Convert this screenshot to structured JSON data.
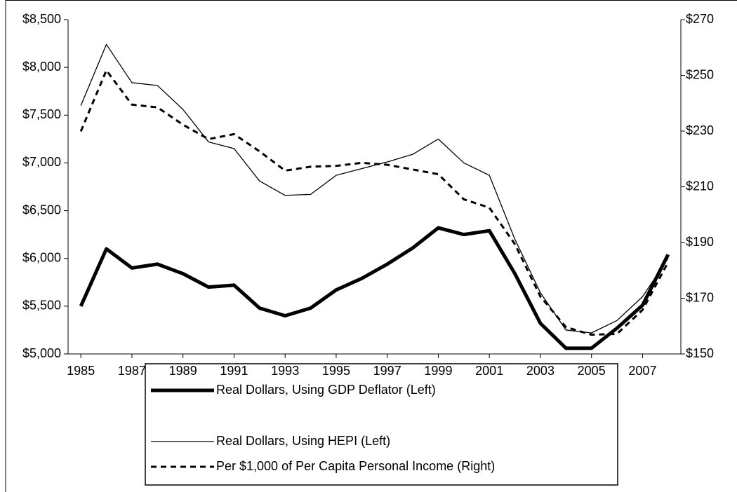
{
  "chart_data": {
    "type": "line",
    "x": [
      1985,
      1986,
      1987,
      1988,
      1989,
      1990,
      1991,
      1992,
      1993,
      1994,
      1995,
      1996,
      1997,
      1998,
      1999,
      2000,
      2001,
      2002,
      2003,
      2004,
      2005,
      2006,
      2007,
      2008
    ],
    "xlim": [
      1984.5,
      2008.5
    ],
    "xticks": [
      1985,
      1987,
      1989,
      1991,
      1993,
      1995,
      1997,
      1999,
      2001,
      2003,
      2005,
      2007
    ],
    "ylim": [
      5000,
      8500
    ],
    "yticks": [
      {
        "value": 5000,
        "label": "$5,000"
      },
      {
        "value": 5500,
        "label": "$5,500"
      },
      {
        "value": 6000,
        "label": "$6,000"
      },
      {
        "value": 6500,
        "label": "$6,500"
      },
      {
        "value": 7000,
        "label": "$7,000"
      },
      {
        "value": 7500,
        "label": "$7,500"
      },
      {
        "value": 8000,
        "label": "$8,000"
      },
      {
        "value": 8500,
        "label": "$8,500"
      }
    ],
    "y2lim": [
      150,
      270
    ],
    "y2ticks": [
      {
        "value": 150,
        "label": "$150"
      },
      {
        "value": 170,
        "label": "$170"
      },
      {
        "value": 190,
        "label": "$190"
      },
      {
        "value": 210,
        "label": "$210"
      },
      {
        "value": 230,
        "label": "$230"
      },
      {
        "value": 250,
        "label": "$250"
      },
      {
        "value": 270,
        "label": "$270"
      }
    ],
    "grid": false,
    "legend": "bottom",
    "series": [
      {
        "name": "Real Dollars, Using GDP Deflator (Left)",
        "color": "#000000",
        "line_width": 5,
        "dash": false,
        "values": [
          5500,
          6100,
          5900,
          5940,
          5840,
          5700,
          5720,
          5480,
          5400,
          5480,
          5670,
          5790,
          5940,
          6110,
          6320,
          6250,
          6290,
          5840,
          5320,
          5060,
          5060,
          5270,
          5510,
          6040
        ]
      },
      {
        "name": "Real Dollars, Using HEPI (Left)",
        "color": "#000000",
        "line_width": 1.3,
        "dash": false,
        "values": [
          7600,
          8240,
          7840,
          7810,
          7560,
          7220,
          7150,
          6810,
          6660,
          6670,
          6870,
          6940,
          7010,
          7090,
          7250,
          7000,
          6870,
          6200,
          5640,
          5250,
          5220,
          5350,
          5600,
          6000
        ]
      },
      {
        "name": "Per $1,000 of Per Capita Personal Income (Right)",
        "color": "#000000",
        "line_width": 3,
        "dash": true,
        "axis": "y2",
        "values": [
          229.9,
          251.8,
          239.5,
          238.5,
          232.3,
          227.1,
          228.9,
          222.7,
          215.8,
          217.2,
          217.5,
          218.6,
          217.9,
          216.2,
          214.5,
          205.5,
          202.5,
          189.4,
          170.6,
          159.6,
          156.9,
          157.2,
          165.8,
          182.9
        ]
      }
    ]
  }
}
